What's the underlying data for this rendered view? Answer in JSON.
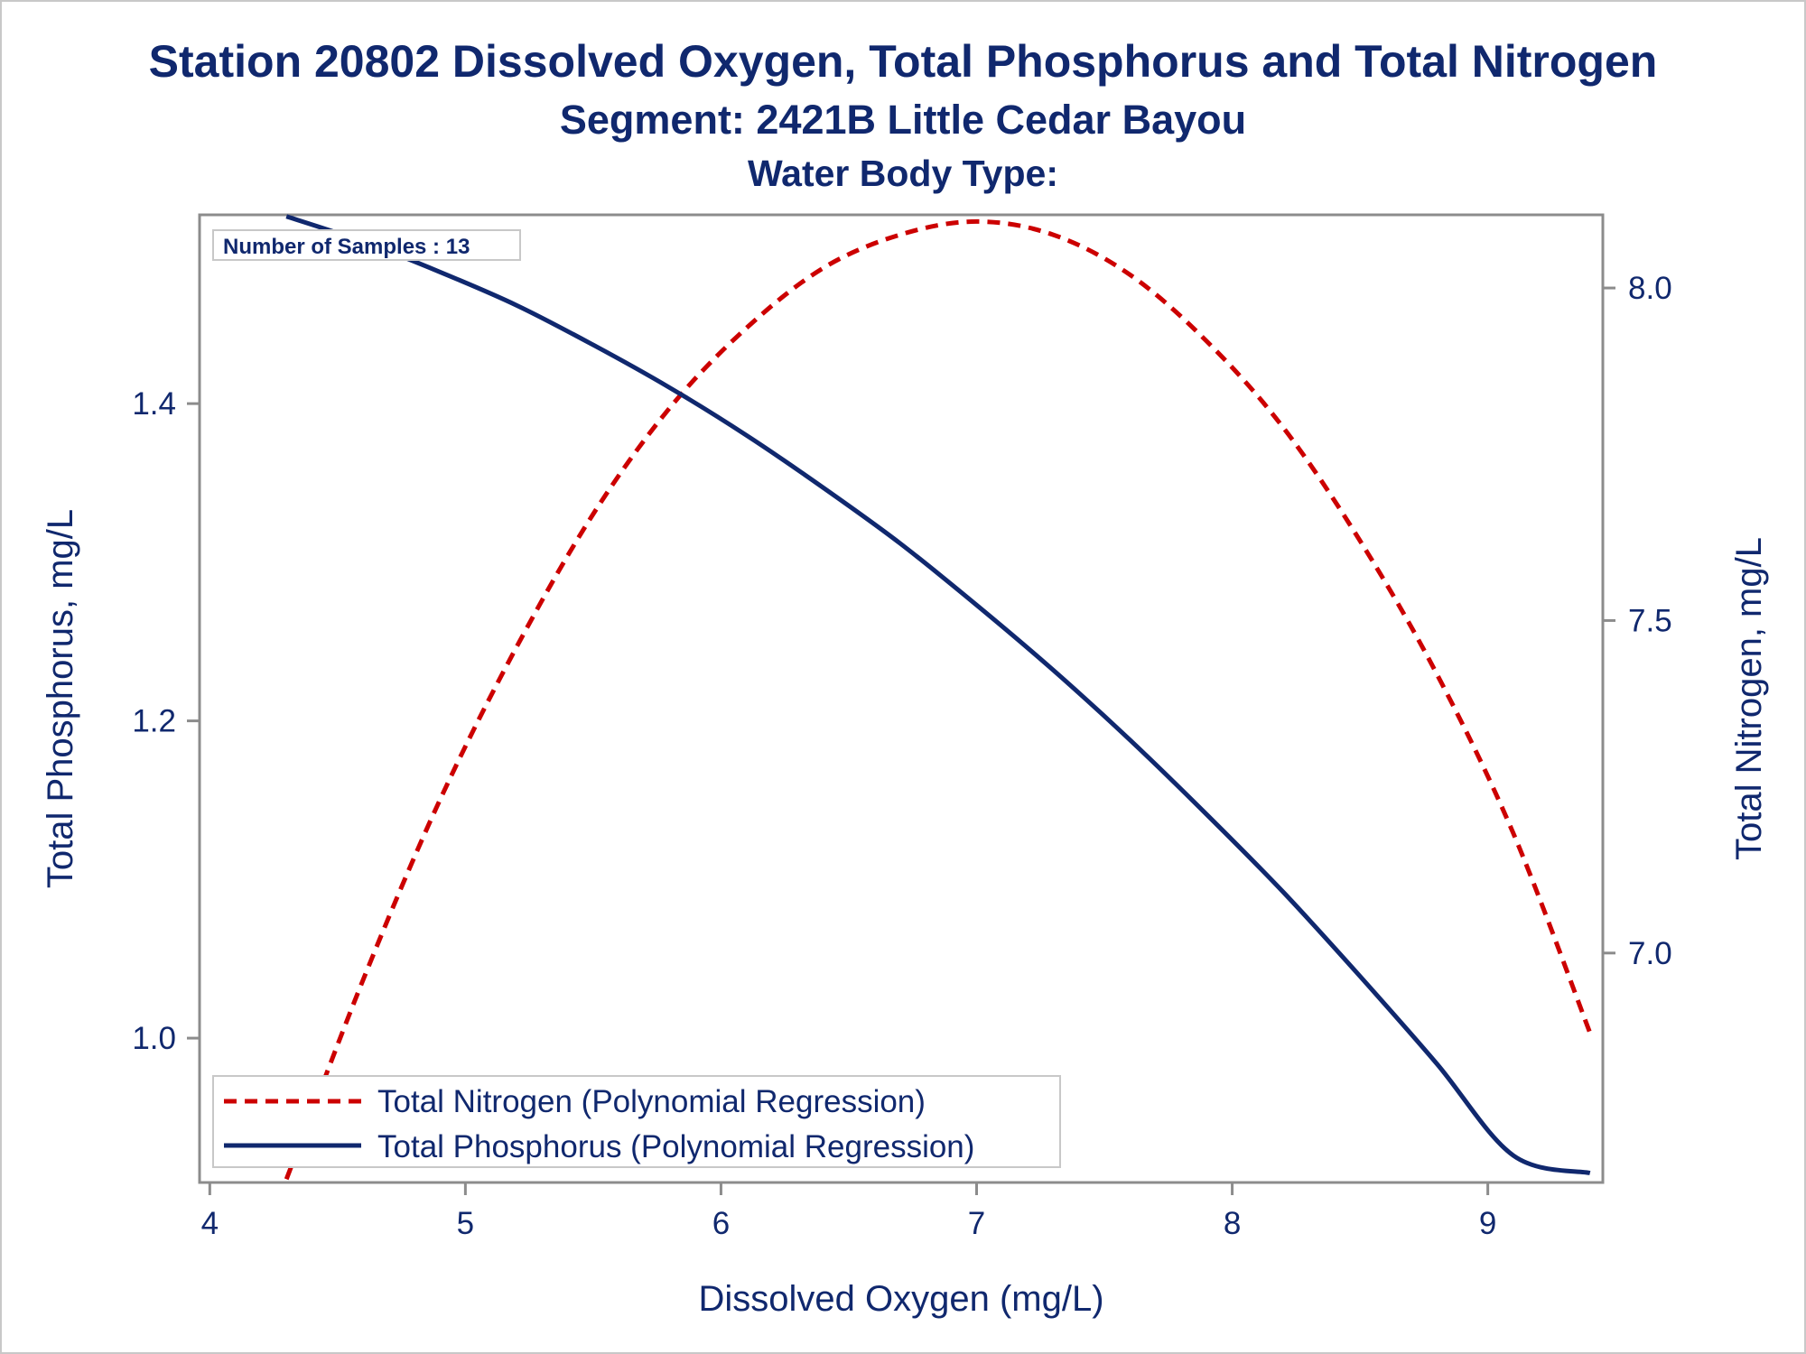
{
  "title": "Station 20802  Dissolved Oxygen, Total Phosphorus and Total Nitrogen",
  "subtitle": "Segment: 2421B  Little Cedar Bayou",
  "subtitle2": "Water Body Type:",
  "inset_label": "Number of Samples : 13",
  "colors": {
    "text": "#10286e",
    "axis": "#8c8c8c",
    "nitrogen": "#cc0000",
    "phosphorus": "#10286e"
  },
  "chart_data": {
    "type": "line",
    "title": "Station 20802  Dissolved Oxygen, Total Phosphorus and Total Nitrogen",
    "subtitle": "Segment: 2421B  Little Cedar Bayou",
    "xlabel": "Dissolved Oxygen (mg/L)",
    "ylabel": "Total Phosphorus, mg/L",
    "y2label": "Total Nitrogen, mg/L",
    "xlim": [
      3.96,
      9.45
    ],
    "ylim": [
      0.909,
      1.519
    ],
    "y2lim": [
      6.655,
      8.11
    ],
    "x_ticks": [
      4,
      5,
      6,
      7,
      8,
      9
    ],
    "x_tick_labels": [
      "4",
      "5",
      "6",
      "7",
      "8",
      "9"
    ],
    "y_ticks": [
      1.0,
      1.2,
      1.4
    ],
    "y_tick_labels": [
      "1.0",
      "1.2",
      "1.4"
    ],
    "y2_ticks": [
      7.0,
      7.5,
      8.0
    ],
    "y2_tick_labels": [
      "7.0",
      "7.5",
      "8.0"
    ],
    "grid": false,
    "legend_position": "bottom-left",
    "series": [
      {
        "name": "Total Nitrogen (Polynomial Regression)",
        "axis": "right",
        "style": "dashed",
        "color": "#cc0000",
        "x": [
          4.3,
          4.6,
          4.9,
          5.2,
          5.5,
          5.8,
          6.1,
          6.4,
          6.7,
          7.0,
          7.3,
          7.6,
          7.9,
          8.2,
          8.5,
          8.8,
          9.1,
          9.4
        ],
        "y": [
          6.66,
          6.96,
          7.23,
          7.46,
          7.66,
          7.82,
          7.94,
          8.03,
          8.08,
          8.1,
          8.08,
          8.02,
          7.92,
          7.79,
          7.62,
          7.42,
          7.18,
          6.88
        ]
      },
      {
        "name": "Total Phosphorus (Polynomial Regression)",
        "axis": "left",
        "style": "solid",
        "color": "#10286e",
        "x": [
          4.3,
          4.6,
          4.9,
          5.2,
          5.5,
          5.8,
          6.1,
          6.4,
          6.7,
          7.0,
          7.3,
          7.6,
          7.9,
          8.2,
          8.5,
          8.8,
          9.1,
          9.4
        ],
        "y": [
          1.518,
          1.502,
          1.483,
          1.462,
          1.437,
          1.41,
          1.38,
          1.347,
          1.312,
          1.273,
          1.232,
          1.188,
          1.141,
          1.092,
          1.039,
          0.984,
          0.926,
          0.915
        ]
      }
    ]
  }
}
